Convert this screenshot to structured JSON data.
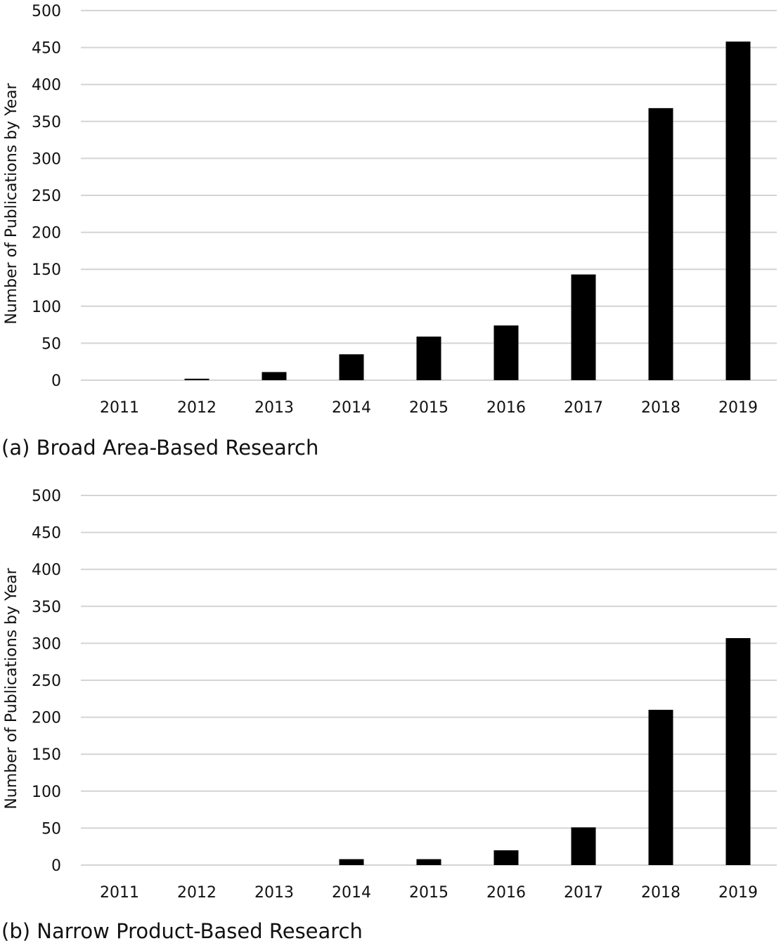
{
  "chart_data": [
    {
      "type": "bar",
      "caption": "(a) Broad Area-Based Research",
      "ylabel": "Number of Publications by Year",
      "xlabel": "",
      "categories": [
        "2011",
        "2012",
        "2013",
        "2014",
        "2015",
        "2016",
        "2017",
        "2018",
        "2019"
      ],
      "values": [
        0,
        2,
        11,
        35,
        59,
        74,
        143,
        368,
        458
      ],
      "ylim": [
        0,
        500
      ],
      "yticks": [
        "0",
        "50",
        "100",
        "150",
        "200",
        "250",
        "300",
        "350",
        "400",
        "450",
        "500"
      ],
      "grid": true,
      "bar_color": "#000000"
    },
    {
      "type": "bar",
      "caption": "(b) Narrow Product-Based Research",
      "ylabel": "Number of Publications by Year",
      "xlabel": "",
      "categories": [
        "2011",
        "2012",
        "2013",
        "2014",
        "2015",
        "2016",
        "2017",
        "2018",
        "2019"
      ],
      "values": [
        0,
        0,
        0,
        8,
        8,
        20,
        51,
        210,
        307
      ],
      "ylim": [
        0,
        500
      ],
      "yticks": [
        "0",
        "50",
        "100",
        "150",
        "200",
        "250",
        "300",
        "350",
        "400",
        "450",
        "500"
      ],
      "grid": true,
      "bar_color": "#000000"
    }
  ]
}
